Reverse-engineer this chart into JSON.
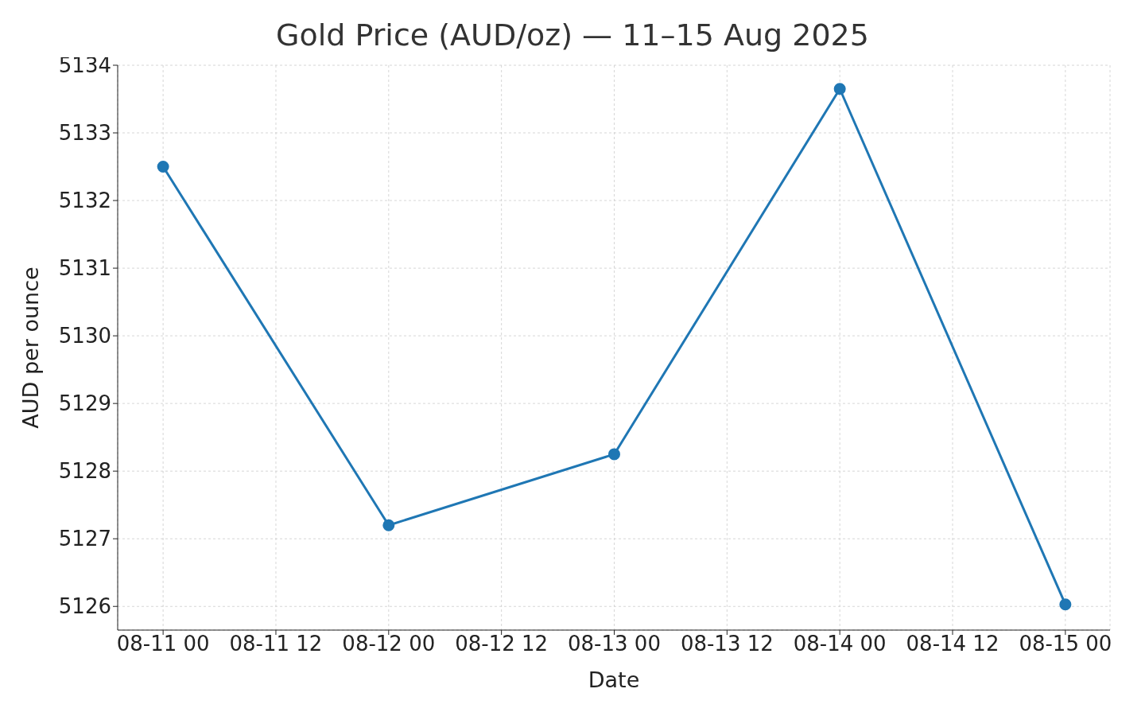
{
  "chart_data": {
    "type": "line",
    "title": "Gold Price (AUD/oz) — 11–15 Aug 2025",
    "xlabel": "Date",
    "ylabel": "AUD per ounce",
    "x": [
      "2025-08-11",
      "2025-08-12",
      "2025-08-13",
      "2025-08-14",
      "2025-08-15"
    ],
    "series": [
      {
        "color": "#1f77b4",
        "values": [
          5132.5,
          5127.2,
          5128.25,
          5133.65,
          5126.03
        ]
      }
    ],
    "xlim": [
      "2025-08-10T19:10",
      "2025-08-15T04:45"
    ],
    "xticks": [
      {
        "value": "2025-08-11T00:00",
        "label": "08-11 00"
      },
      {
        "value": "2025-08-11T12:00",
        "label": "08-11 12"
      },
      {
        "value": "2025-08-12T00:00",
        "label": "08-12 00"
      },
      {
        "value": "2025-08-12T12:00",
        "label": "08-12 12"
      },
      {
        "value": "2025-08-13T00:00",
        "label": "08-13 00"
      },
      {
        "value": "2025-08-13T12:00",
        "label": "08-13 12"
      },
      {
        "value": "2025-08-14T00:00",
        "label": "08-14 00"
      },
      {
        "value": "2025-08-14T12:00",
        "label": "08-14 12"
      },
      {
        "value": "2025-08-15T00:00",
        "label": "08-15 00"
      }
    ],
    "ylim": [
      5125.65,
      5134
    ],
    "yticks": [
      5126,
      5127,
      5128,
      5129,
      5130,
      5131,
      5132,
      5133,
      5134
    ],
    "grid": true,
    "marker": "circle",
    "line_style": "solid"
  }
}
